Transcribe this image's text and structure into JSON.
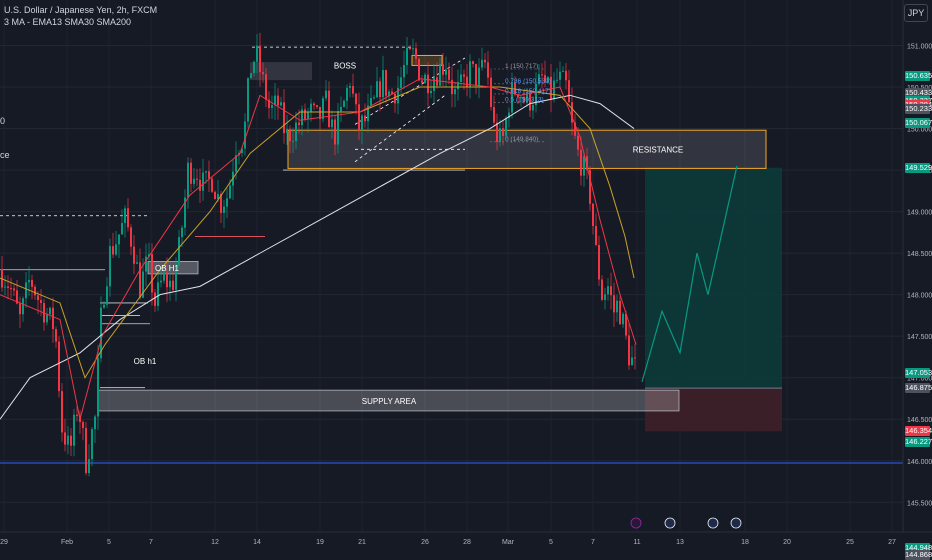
{
  "header": {
    "title": "U.S. Dollar / Japanese Yen, 2h, FXCM",
    "indicators": "3 MA - EMA13 SMA30 SMA200"
  },
  "currency_button": "JPY",
  "left_edge": [
    "0",
    "ce"
  ],
  "chart_data": {
    "type": "candlestick",
    "title": "U.S. Dollar / Japanese Yen, 2h, FXCM",
    "ylim": [
      144.85,
      151.3
    ],
    "y_ticks": [
      "151.000",
      "150.500",
      "150.000",
      "149.500",
      "149.000",
      "148.500",
      "148.000",
      "147.500",
      "147.000",
      "146.500",
      "146.000",
      "145.500",
      "145.000"
    ],
    "x_ticks": [
      "29",
      "Feb",
      "5",
      "7",
      "12",
      "14",
      "19",
      "21",
      "26",
      "28",
      "Mar",
      "5",
      "7",
      "11",
      "13",
      "18",
      "20",
      "25",
      "27"
    ],
    "price_path": [
      [
        0,
        148.3
      ],
      [
        10,
        148.1
      ],
      [
        20,
        147.7
      ],
      [
        30,
        148.2
      ],
      [
        40,
        147.9
      ],
      [
        55,
        147.6
      ],
      [
        62,
        146.4
      ],
      [
        70,
        146.1
      ],
      [
        78,
        146.7
      ],
      [
        86,
        146.0
      ],
      [
        95,
        146.5
      ],
      [
        102,
        147.9
      ],
      [
        110,
        148.5
      ],
      [
        118,
        148.7
      ],
      [
        125,
        148.9
      ],
      [
        133,
        148.6
      ],
      [
        140,
        148.1
      ],
      [
        148,
        148.4
      ],
      [
        155,
        147.9
      ],
      [
        163,
        148.2
      ],
      [
        172,
        148.1
      ],
      [
        180,
        148.6
      ],
      [
        188,
        149.5
      ],
      [
        196,
        149.5
      ],
      [
        204,
        149.3
      ],
      [
        212,
        149.4
      ],
      [
        220,
        149.1
      ],
      [
        228,
        149.2
      ],
      [
        236,
        149.8
      ],
      [
        244,
        149.9
      ],
      [
        250,
        150.7
      ],
      [
        256,
        150.9
      ],
      [
        262,
        150.6
      ],
      [
        270,
        150.2
      ],
      [
        278,
        150.3
      ],
      [
        286,
        149.9
      ],
      [
        294,
        150.0
      ],
      [
        302,
        150.1
      ],
      [
        310,
        150.2
      ],
      [
        318,
        150.1
      ],
      [
        326,
        150.3
      ],
      [
        334,
        149.9
      ],
      [
        342,
        150.2
      ],
      [
        350,
        150.6
      ],
      [
        358,
        150.0
      ],
      [
        366,
        150.1
      ],
      [
        374,
        150.3
      ],
      [
        382,
        150.6
      ],
      [
        390,
        150.4
      ],
      [
        398,
        150.5
      ],
      [
        406,
        150.8
      ],
      [
        414,
        150.9
      ],
      [
        422,
        150.6
      ],
      [
        430,
        150.6
      ],
      [
        438,
        150.7
      ],
      [
        446,
        150.8
      ],
      [
        454,
        150.4
      ],
      [
        462,
        150.5
      ],
      [
        470,
        150.7
      ],
      [
        478,
        150.6
      ],
      [
        486,
        150.8
      ],
      [
        494,
        150.0
      ],
      [
        502,
        149.8
      ],
      [
        510,
        150.4
      ],
      [
        518,
        150.5
      ],
      [
        526,
        150.3
      ],
      [
        534,
        150.4
      ],
      [
        542,
        150.6
      ],
      [
        550,
        150.4
      ],
      [
        558,
        150.6
      ],
      [
        566,
        150.5
      ],
      [
        572,
        150.0
      ],
      [
        578,
        149.7
      ],
      [
        584,
        149.5
      ],
      [
        590,
        149.2
      ],
      [
        596,
        148.5
      ],
      [
        602,
        148.0
      ],
      [
        608,
        148.1
      ],
      [
        614,
        147.8
      ],
      [
        618,
        147.9
      ],
      [
        624,
        147.6
      ],
      [
        628,
        147.3
      ],
      [
        632,
        147.2
      ],
      [
        636,
        147.1
      ]
    ],
    "ema13_path": [
      [
        0,
        148.0
      ],
      [
        60,
        147.7
      ],
      [
        80,
        146.5
      ],
      [
        102,
        147.5
      ],
      [
        140,
        148.3
      ],
      [
        190,
        149.2
      ],
      [
        240,
        149.7
      ],
      [
        260,
        150.4
      ],
      [
        300,
        150.1
      ],
      [
        360,
        150.2
      ],
      [
        420,
        150.6
      ],
      [
        490,
        150.5
      ],
      [
        520,
        150.4
      ],
      [
        560,
        150.5
      ],
      [
        580,
        149.9
      ],
      [
        600,
        148.9
      ],
      [
        620,
        148.0
      ],
      [
        636,
        147.4
      ]
    ],
    "sma30_path": [
      [
        0,
        148.2
      ],
      [
        60,
        147.9
      ],
      [
        85,
        147.0
      ],
      [
        105,
        147.4
      ],
      [
        160,
        148.3
      ],
      [
        210,
        149.0
      ],
      [
        250,
        149.7
      ],
      [
        300,
        150.2
      ],
      [
        360,
        150.2
      ],
      [
        420,
        150.5
      ],
      [
        500,
        150.5
      ],
      [
        560,
        150.4
      ],
      [
        590,
        150.0
      ],
      [
        610,
        149.3
      ],
      [
        625,
        148.7
      ],
      [
        634,
        148.2
      ]
    ],
    "sma200_path": [
      [
        0,
        146.5
      ],
      [
        30,
        147.0
      ],
      [
        80,
        147.3
      ],
      [
        120,
        147.7
      ],
      [
        160,
        148.0
      ],
      [
        200,
        148.1
      ],
      [
        260,
        148.5
      ],
      [
        320,
        148.9
      ],
      [
        380,
        149.3
      ],
      [
        440,
        149.7
      ],
      [
        490,
        150.0
      ],
      [
        530,
        150.3
      ],
      [
        570,
        150.4
      ],
      [
        600,
        150.3
      ],
      [
        634,
        150.0
      ]
    ],
    "projection_path": [
      [
        642,
        146.95
      ],
      [
        662,
        147.8
      ],
      [
        680,
        147.3
      ],
      [
        697,
        148.5
      ],
      [
        708,
        148.0
      ],
      [
        737,
        149.55
      ]
    ],
    "price_badges": [
      {
        "label": "150.635",
        "price": 150.635,
        "color": "#089981"
      },
      {
        "label": "150.433",
        "price": 150.433,
        "color": "#4c525e"
      },
      {
        "label": "150.337",
        "price": 150.337,
        "color": "#089981"
      },
      {
        "label": "150.284",
        "price": 150.284,
        "color": "#f23645"
      },
      {
        "label": "150.233",
        "price": 150.233,
        "color": "#4c525e"
      },
      {
        "label": "150.067",
        "price": 150.067,
        "color": "#089981"
      },
      {
        "label": "149.529",
        "price": 149.529,
        "color": "#089981"
      },
      {
        "label": "147.053",
        "price": 147.053,
        "color": "#089981"
      },
      {
        "label": "146.875",
        "price": 146.875,
        "color": "#4c525e"
      },
      {
        "label": "146.354",
        "price": 146.354,
        "color": "#f23645"
      },
      {
        "label": "146.227",
        "price": 146.227,
        "color": "#089981"
      },
      {
        "label": "144.948",
        "price": 144.948,
        "color": "#089981"
      },
      {
        "label": "144.868",
        "price": 144.868,
        "color": "#4c525e"
      }
    ],
    "annotations": {
      "resistance": "RESISTANCE",
      "supply": "SUPPLY AREA",
      "boss": "BOSS",
      "ob_h1_a": "OB H1",
      "ob_h1_b": "OB h1"
    },
    "fib_levels": [
      {
        "label": "1 (150.717)",
        "price": 150.717
      },
      {
        "label": "0.786 (150.539)",
        "price": 150.539
      },
      {
        "label": "0.618 (150.417)",
        "price": 150.417
      },
      {
        "label": "0.5 (150.313)",
        "price": 150.313
      },
      {
        "label": "0 (149.840)",
        "price": 149.84
      }
    ],
    "trade": {
      "entry": 146.875,
      "target": 149.529,
      "stop": 146.354
    },
    "colors": {
      "bg": "#161a25",
      "up": "#089981",
      "down": "#f23645",
      "ema13": "#f23645",
      "sma30": "#c9a227",
      "sma200": "#e0e3eb",
      "zone_border": "#f5a623",
      "target_fill": "#0c3b3a",
      "stop_fill": "#3c1f28",
      "blue_line": "#2962ff"
    }
  }
}
